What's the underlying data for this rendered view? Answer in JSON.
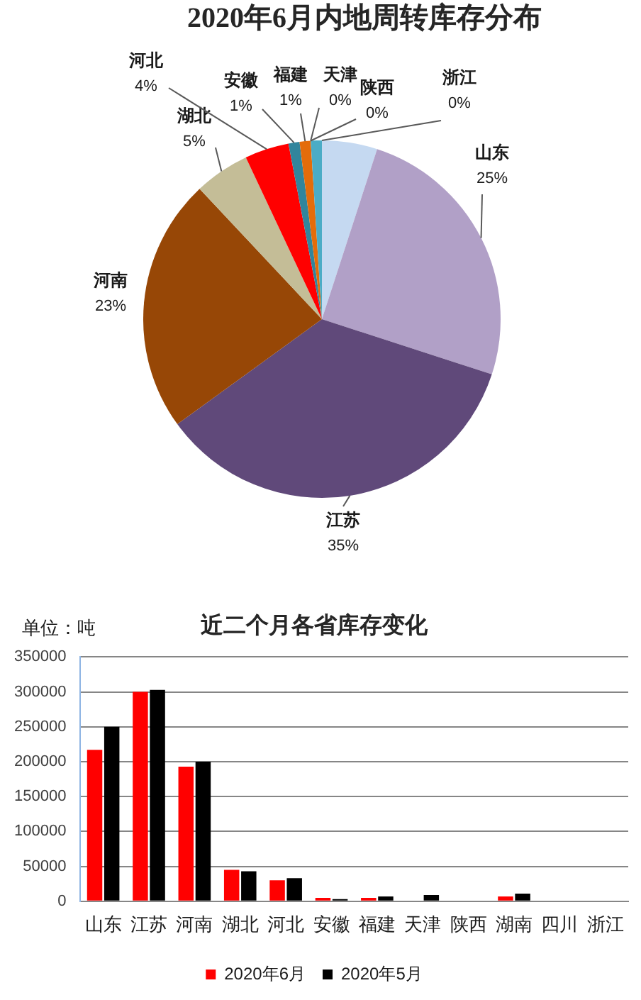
{
  "chart_data": [
    {
      "type": "pie",
      "title": "2020年6月内地周转库存分布",
      "categories": [
        null,
        "山东",
        "江苏",
        "河南",
        "湖北",
        "河北",
        "安徽",
        "福建",
        "天津",
        "陕西",
        null,
        "浙江"
      ],
      "values": [
        5,
        25,
        35,
        23,
        5,
        4,
        1,
        1,
        0,
        0,
        1,
        0
      ],
      "value_labels": [
        null,
        "25%",
        "35%",
        "23%",
        "5%",
        "4%",
        "1%",
        "1%",
        "0%",
        "0%",
        null,
        "0%"
      ],
      "colors": [
        "#c5d9f1",
        "#b1a0c7",
        "#60497a",
        "#974706",
        "#c4bd97",
        "#ff0000",
        "#31859c",
        "#e46c0a",
        "#000000",
        "#7f7f7f",
        "#4bacc6",
        "#c0504d"
      ]
    },
    {
      "type": "bar",
      "title": "近二个月各省库存变化",
      "ylabel": "单位：吨",
      "categories": [
        "山东",
        "江苏",
        "河南",
        "湖北",
        "河北",
        "安徽",
        "福建",
        "天津",
        "陕西",
        "湖南",
        "四川",
        "浙江"
      ],
      "series": [
        {
          "name": "2020年6月",
          "color": "#ff0000",
          "values": [
            217000,
            300000,
            193000,
            45000,
            30000,
            5000,
            5000,
            0,
            0,
            7000,
            0,
            0
          ]
        },
        {
          "name": "2020年5月",
          "color": "#000000",
          "values": [
            250000,
            303000,
            200000,
            43000,
            33000,
            3000,
            7000,
            9000,
            0,
            11000,
            0,
            0
          ]
        }
      ],
      "ylim": [
        0,
        350000
      ],
      "yticks": [
        0,
        50000,
        100000,
        150000,
        200000,
        250000,
        300000,
        350000
      ],
      "grid": "y",
      "legend": "bottom"
    }
  ]
}
